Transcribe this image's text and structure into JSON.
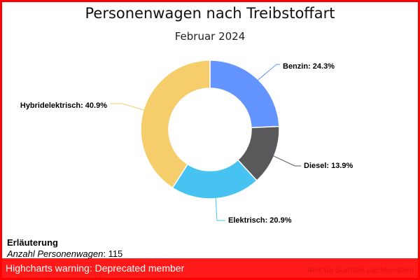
{
  "chart_data": {
    "type": "pie",
    "variant": "donut",
    "title": "Personenwagen nach Treibstoffart",
    "subtitle": "Februar 2024",
    "start_angle_deg": 0,
    "direction": "clockwise",
    "slices": [
      {
        "name": "Benzin",
        "value": 24.3,
        "label": "Benzin: 24.3%",
        "color": "#6494ff"
      },
      {
        "name": "Diesel",
        "value": 13.9,
        "label": "Diesel: 13.9%",
        "color": "#59595c"
      },
      {
        "name": "Elektrisch",
        "value": 20.9,
        "label": "Elektrisch: 20.9%",
        "color": "#46c3f0"
      },
      {
        "name": "Hybridelektrisch",
        "value": 40.9,
        "label": "Hybridelektrisch: 40.9%",
        "color": "#f5cd6b"
      }
    ],
    "unit": "%"
  },
  "caption": {
    "heading": "Erläuterung",
    "label": "Anzahl Personenwagen",
    "separator": ": ",
    "value": "115"
  },
  "warning": {
    "message": "Highcharts warning: Deprecated member",
    "background": "#ff1a1a"
  },
  "credits": "Amt für Statistik Liechtenstein",
  "colors": {
    "border": "#ff0000"
  }
}
